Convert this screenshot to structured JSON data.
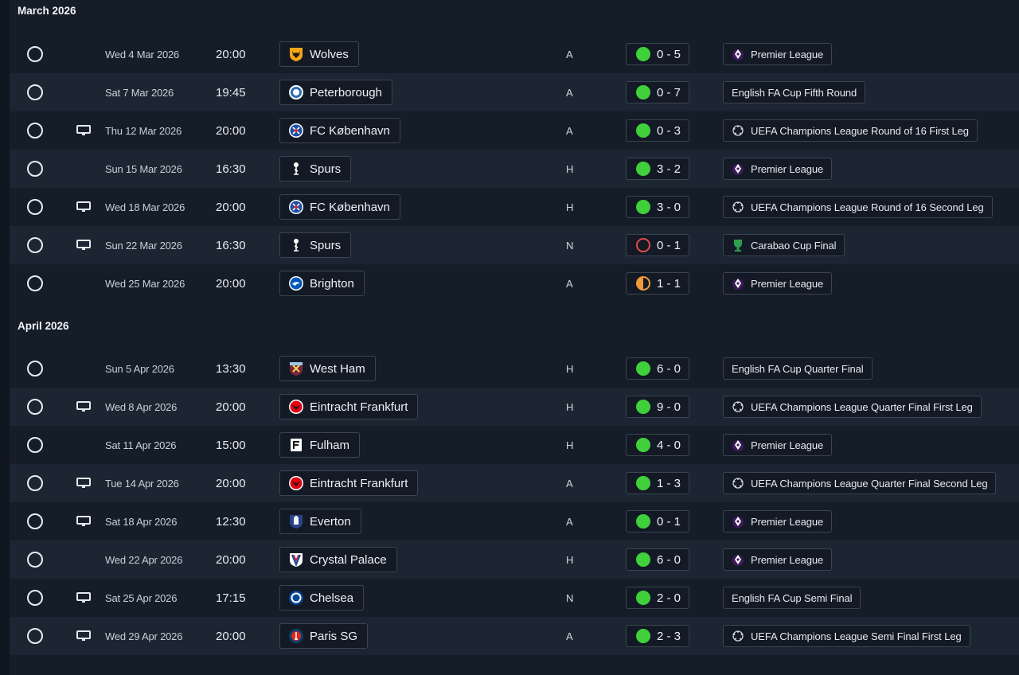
{
  "months": [
    {
      "title": "March 2026",
      "matches": [
        {
          "tv": false,
          "date": "Wed 4 Mar 2026",
          "time": "20:00",
          "opponent": "Wolves",
          "crest": "wolves-crest",
          "venue": "A",
          "outcome": "win",
          "score": "0 - 5",
          "competition": "Premier League",
          "comp_logo": "premier-league-logo"
        },
        {
          "tv": false,
          "date": "Sat 7 Mar 2026",
          "time": "19:45",
          "opponent": "Peterborough",
          "crest": "peterborough-crest",
          "venue": "A",
          "outcome": "win",
          "score": "0 - 7",
          "competition": "English FA Cup Fifth Round",
          "comp_logo": ""
        },
        {
          "tv": true,
          "date": "Thu 12 Mar 2026",
          "time": "20:00",
          "opponent": "FC København",
          "crest": "copenhagen-crest",
          "venue": "A",
          "outcome": "win",
          "score": "0 - 3",
          "competition": "UEFA Champions League Round of 16  First Leg",
          "comp_logo": "champions-league-logo"
        },
        {
          "tv": false,
          "date": "Sun 15 Mar 2026",
          "time": "16:30",
          "opponent": "Spurs",
          "crest": "spurs-crest",
          "venue": "H",
          "outcome": "win",
          "score": "3 - 2",
          "competition": "Premier League",
          "comp_logo": "premier-league-logo"
        },
        {
          "tv": true,
          "date": "Wed 18 Mar 2026",
          "time": "20:00",
          "opponent": "FC København",
          "crest": "copenhagen-crest",
          "venue": "H",
          "outcome": "win",
          "score": "3 - 0",
          "competition": "UEFA Champions League Round of 16  Second Leg",
          "comp_logo": "champions-league-logo"
        },
        {
          "tv": true,
          "date": "Sun 22 Mar 2026",
          "time": "16:30",
          "opponent": "Spurs",
          "crest": "spurs-crest",
          "venue": "N",
          "outcome": "loss",
          "score": "0 - 1",
          "competition": "Carabao Cup Final",
          "comp_logo": "carabao-cup-logo"
        },
        {
          "tv": false,
          "date": "Wed 25 Mar 2026",
          "time": "20:00",
          "opponent": "Brighton",
          "crest": "brighton-crest",
          "venue": "A",
          "outcome": "draw",
          "score": "1 - 1",
          "competition": "Premier League",
          "comp_logo": "premier-league-logo"
        }
      ]
    },
    {
      "title": "April 2026",
      "matches": [
        {
          "tv": false,
          "date": "Sun 5 Apr 2026",
          "time": "13:30",
          "opponent": "West Ham",
          "crest": "west-ham-crest",
          "venue": "H",
          "outcome": "win",
          "score": "6 - 0",
          "competition": "English FA Cup Quarter Final",
          "comp_logo": ""
        },
        {
          "tv": true,
          "date": "Wed 8 Apr 2026",
          "time": "20:00",
          "opponent": "Eintracht Frankfurt",
          "crest": "frankfurt-crest",
          "venue": "H",
          "outcome": "win",
          "score": "9 - 0",
          "competition": "UEFA Champions League Quarter Final First Leg",
          "comp_logo": "champions-league-logo"
        },
        {
          "tv": false,
          "date": "Sat 11 Apr 2026",
          "time": "15:00",
          "opponent": "Fulham",
          "crest": "fulham-crest",
          "venue": "H",
          "outcome": "win",
          "score": "4 - 0",
          "competition": "Premier League",
          "comp_logo": "premier-league-logo"
        },
        {
          "tv": true,
          "date": "Tue 14 Apr 2026",
          "time": "20:00",
          "opponent": "Eintracht Frankfurt",
          "crest": "frankfurt-crest",
          "venue": "A",
          "outcome": "win",
          "score": "1 - 3",
          "competition": "UEFA Champions League Quarter Final Second Leg",
          "comp_logo": "champions-league-logo"
        },
        {
          "tv": true,
          "date": "Sat 18 Apr 2026",
          "time": "12:30",
          "opponent": "Everton",
          "crest": "everton-crest",
          "venue": "A",
          "outcome": "win",
          "score": "0 - 1",
          "competition": "Premier League",
          "comp_logo": "premier-league-logo"
        },
        {
          "tv": false,
          "date": "Wed 22 Apr 2026",
          "time": "20:00",
          "opponent": "Crystal Palace",
          "crest": "crystal-palace-crest",
          "venue": "H",
          "outcome": "win",
          "score": "6 - 0",
          "competition": "Premier League",
          "comp_logo": "premier-league-logo"
        },
        {
          "tv": true,
          "date": "Sat 25 Apr 2026",
          "time": "17:15",
          "opponent": "Chelsea",
          "crest": "chelsea-crest",
          "venue": "N",
          "outcome": "win",
          "score": "2 - 0",
          "competition": "English FA Cup Semi Final",
          "comp_logo": ""
        },
        {
          "tv": true,
          "date": "Wed 29 Apr 2026",
          "time": "20:00",
          "opponent": "Paris SG",
          "crest": "psg-crest",
          "venue": "A",
          "outcome": "win",
          "score": "2 - 3",
          "competition": "UEFA Champions League Semi Final First Leg",
          "comp_logo": "champions-league-logo"
        }
      ]
    }
  ],
  "colors": {
    "win": "#3fd03b",
    "loss": "#e14a4a",
    "draw": "#f0993a",
    "background": "#151d29",
    "row_alt": "#1c2532"
  }
}
